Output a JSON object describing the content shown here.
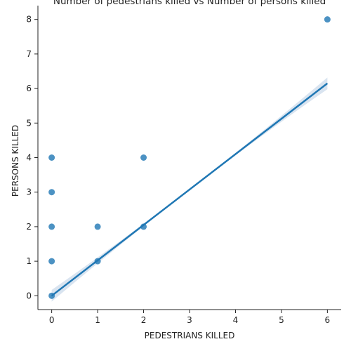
{
  "chart_data": {
    "type": "scatter",
    "title": "Number of pedestrians killed vs Number of persons killed",
    "xlabel": "PEDESTRIANS KILLED",
    "ylabel": "PERSONS KILLED",
    "xlim": [
      -0.3,
      6.3
    ],
    "ylim": [
      -0.4,
      8.4
    ],
    "xticks": [
      "0",
      "1",
      "2",
      "3",
      "4",
      "5",
      "6"
    ],
    "yticks": [
      "0",
      "1",
      "2",
      "3",
      "4",
      "5",
      "6",
      "7",
      "8"
    ],
    "grid": false,
    "legend": "none",
    "series": [
      {
        "points": [
          {
            "x": 0,
            "y": 0
          },
          {
            "x": 0,
            "y": 1
          },
          {
            "x": 0,
            "y": 2
          },
          {
            "x": 0,
            "y": 3
          },
          {
            "x": 0,
            "y": 4
          },
          {
            "x": 1,
            "y": 1
          },
          {
            "x": 1,
            "y": 2
          },
          {
            "x": 2,
            "y": 2
          },
          {
            "x": 2,
            "y": 4
          },
          {
            "x": 6,
            "y": 8
          }
        ]
      }
    ],
    "regression": {
      "x_range": [
        0,
        6
      ],
      "y_range": [
        0.0,
        6.15
      ],
      "ci_half_width_at_max": 0.15
    },
    "colors": {
      "points": "#1f77b4",
      "line": "#1f77b4",
      "ci_band": "#c9d9ea",
      "axis": "#222222"
    }
  }
}
